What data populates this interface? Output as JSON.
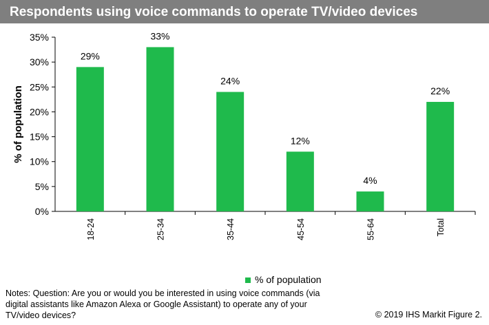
{
  "header": {
    "title": "Respondents using voice commands to operate TV/video devices"
  },
  "chart_data": {
    "type": "bar",
    "categories": [
      "18-24",
      "25-34",
      "35-44",
      "45-54",
      "55-64",
      "Total"
    ],
    "series": [
      {
        "name": "% of population",
        "values": [
          29,
          33,
          24,
          12,
          4,
          22
        ]
      }
    ],
    "data_labels": [
      "29%",
      "33%",
      "24%",
      "12%",
      "4%",
      "22%"
    ],
    "ylabel": "% of population",
    "ylim": [
      0,
      35
    ],
    "yticks": [
      "0%",
      "5%",
      "10%",
      "15%",
      "20%",
      "25%",
      "30%",
      "35%"
    ],
    "grid": false,
    "legend_position": "bottom",
    "bar_color": "#1fba4c"
  },
  "footer": {
    "notes": "Notes: Question: Are you or would you be interested in using voice commands (via digital assistants like Amazon Alexa or Google Assistant) to operate any of your TV/video devices?",
    "copyright": "© 2019 IHS Markit   Figure 2."
  }
}
